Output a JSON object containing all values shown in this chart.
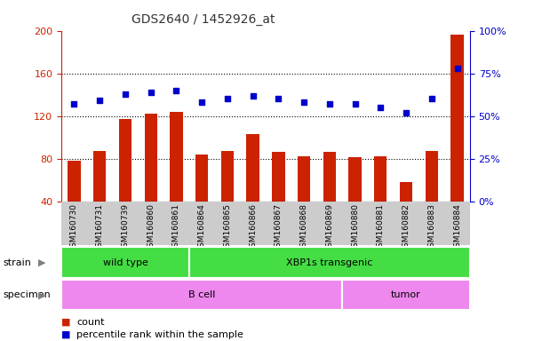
{
  "title": "GDS2640 / 1452926_at",
  "samples": [
    "GSM160730",
    "GSM160731",
    "GSM160739",
    "GSM160860",
    "GSM160861",
    "GSM160864",
    "GSM160865",
    "GSM160866",
    "GSM160867",
    "GSM160868",
    "GSM160869",
    "GSM160880",
    "GSM160881",
    "GSM160882",
    "GSM160883",
    "GSM160884"
  ],
  "counts": [
    78,
    87,
    117,
    122,
    124,
    84,
    87,
    103,
    86,
    82,
    86,
    81,
    82,
    58,
    87,
    196
  ],
  "percentiles": [
    57,
    59,
    63,
    64,
    65,
    58,
    60,
    62,
    60,
    58,
    57,
    57,
    55,
    52,
    60,
    78
  ],
  "ylim_left": [
    40,
    200
  ],
  "ylim_right": [
    0,
    100
  ],
  "yticks_left": [
    40,
    80,
    120,
    160,
    200
  ],
  "yticks_right": [
    0,
    25,
    50,
    75,
    100
  ],
  "hlines": [
    80,
    120,
    160
  ],
  "bar_color": "#cc2200",
  "dot_color": "#0000cc",
  "title_color": "#333333",
  "left_tick_color": "#cc2200",
  "right_tick_color": "#0000cc",
  "strain_groups": [
    {
      "label": "wild type",
      "start": 0,
      "end": 5
    },
    {
      "label": "XBP1s transgenic",
      "start": 5,
      "end": 16
    }
  ],
  "specimen_groups": [
    {
      "label": "B cell",
      "start": 0,
      "end": 11
    },
    {
      "label": "tumor",
      "start": 11,
      "end": 16
    }
  ],
  "strain_color_light": "#aaffaa",
  "strain_color_dark": "#44dd44",
  "specimen_color": "#ee88ee",
  "bar_width": 0.5,
  "legend_count_label": "count",
  "legend_pct_label": "percentile rank within the sample",
  "xtick_bg": "#cccccc",
  "fig_width": 6.01,
  "fig_height": 3.84,
  "dpi": 100
}
